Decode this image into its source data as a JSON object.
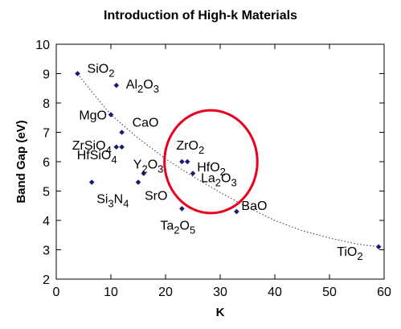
{
  "chart_data": {
    "type": "scatter",
    "title": "Introduction of High-k Materials",
    "xlabel": "K",
    "ylabel": "Band Gap (eV)",
    "xlim": [
      0,
      60
    ],
    "ylim": [
      2,
      10
    ],
    "xticks": [
      "0",
      "10",
      "20",
      "30",
      "40",
      "50",
      "60"
    ],
    "yticks": [
      "2",
      "3",
      "4",
      "5",
      "6",
      "7",
      "8",
      "9",
      "10"
    ],
    "grid": false,
    "marker_color": "#1a1a6e",
    "highlight_color": "#e8001c",
    "points": [
      {
        "label": "SiO2",
        "parts": [
          [
            "SiO",
            ""
          ],
          [
            "2",
            "sub"
          ]
        ],
        "x": 3.9,
        "y": 9.0
      },
      {
        "label": "Al2O3",
        "parts": [
          [
            "Al",
            ""
          ],
          [
            "2",
            "sub"
          ],
          [
            "O",
            ""
          ],
          [
            "3",
            "sub"
          ]
        ],
        "x": 11,
        "y": 8.6
      },
      {
        "label": "MgO",
        "parts": [
          [
            "MgO",
            ""
          ]
        ],
        "x": 10,
        "y": 7.6
      },
      {
        "label": "CaO",
        "parts": [
          [
            "CaO",
            ""
          ]
        ],
        "x": 12,
        "y": 7.0
      },
      {
        "label": "ZrSiO4",
        "parts": [
          [
            "ZrSiO",
            ""
          ],
          [
            "4",
            "sub"
          ]
        ],
        "x": 11,
        "y": 6.5
      },
      {
        "label": "HfSiO4",
        "parts": [
          [
            "HfSiO",
            ""
          ],
          [
            "4",
            "sub"
          ]
        ],
        "x": 12,
        "y": 6.5
      },
      {
        "label": "Y2O3",
        "parts": [
          [
            "Y",
            ""
          ],
          [
            "2",
            "sub"
          ],
          [
            "O",
            ""
          ],
          [
            "3",
            "sub"
          ]
        ],
        "x": 16,
        "y": 5.6
      },
      {
        "label": "SrO",
        "parts": [
          [
            "SrO",
            ""
          ]
        ],
        "x": 15,
        "y": 5.3
      },
      {
        "label": "Si3N4",
        "parts": [
          [
            "Si",
            ""
          ],
          [
            "3",
            "sub"
          ],
          [
            "N",
            ""
          ],
          [
            "4",
            "sub"
          ]
        ],
        "x": 6.5,
        "y": 5.3
      },
      {
        "label": "ZrO2",
        "parts": [
          [
            "ZrO",
            ""
          ],
          [
            "2",
            "sub"
          ]
        ],
        "x": 23,
        "y": 6.0
      },
      {
        "label": "HfO2",
        "parts": [
          [
            "HfO",
            ""
          ],
          [
            "2",
            "sub"
          ]
        ],
        "x": 24,
        "y": 6.0
      },
      {
        "label": "La2O3",
        "parts": [
          [
            "La",
            ""
          ],
          [
            "2",
            "sub"
          ],
          [
            "O",
            ""
          ],
          [
            "3",
            "sub"
          ]
        ],
        "x": 25,
        "y": 5.6
      },
      {
        "label": "Ta2O5",
        "parts": [
          [
            "Ta",
            ""
          ],
          [
            "2",
            "sub"
          ],
          [
            "O",
            ""
          ],
          [
            "5",
            "sub"
          ]
        ],
        "x": 23,
        "y": 4.4
      },
      {
        "label": "BaO",
        "parts": [
          [
            "BaO",
            ""
          ]
        ],
        "x": 33,
        "y": 4.3
      },
      {
        "label": "TiO2",
        "parts": [
          [
            "TiO",
            ""
          ],
          [
            "2",
            "sub"
          ]
        ],
        "x": 59,
        "y": 3.1
      }
    ],
    "trend_line": [
      [
        3.9,
        9.0
      ],
      [
        6,
        8.5
      ],
      [
        10,
        7.6
      ],
      [
        15,
        6.8
      ],
      [
        20,
        6.1
      ],
      [
        25,
        5.5
      ],
      [
        30,
        4.95
      ],
      [
        35,
        4.45
      ],
      [
        40,
        4.0
      ],
      [
        45,
        3.65
      ],
      [
        50,
        3.4
      ],
      [
        55,
        3.2
      ],
      [
        59,
        3.1
      ]
    ],
    "highlight_circle": {
      "cx": 28.3,
      "cy": 6.0,
      "rx": 8.5,
      "ry": 1.75
    }
  }
}
